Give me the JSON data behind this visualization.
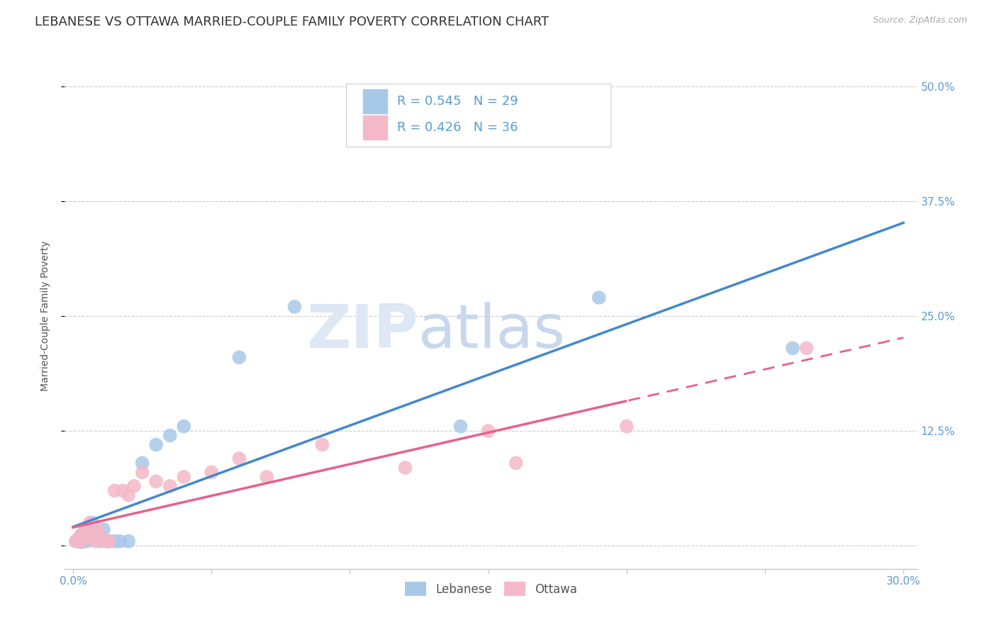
{
  "title": "LEBANESE VS OTTAWA MARRIED-COUPLE FAMILY POVERTY CORRELATION CHART",
  "source_text": "Source: ZipAtlas.com",
  "ylabel": "Married-Couple Family Poverty",
  "xlim": [
    -0.003,
    0.305
  ],
  "ylim": [
    -0.025,
    0.525
  ],
  "xticks": [
    0.0,
    0.05,
    0.1,
    0.15,
    0.2,
    0.25,
    0.3
  ],
  "xtick_labels": [
    "0.0%",
    "",
    "",
    "",
    "",
    "",
    "30.0%"
  ],
  "ytick_positions": [
    0.0,
    0.125,
    0.25,
    0.375,
    0.5
  ],
  "ytick_labels": [
    "",
    "12.5%",
    "25.0%",
    "37.5%",
    "50.0%"
  ],
  "watermark_zip": "ZIP",
  "watermark_atlas": "atlas",
  "legend_r1": "R = 0.545",
  "legend_n1": "N = 29",
  "legend_r2": "R = 0.426",
  "legend_n2": "N = 36",
  "blue_scatter_color": "#a8c8e8",
  "pink_scatter_color": "#f4b8c8",
  "blue_line_color": "#4488cc",
  "pink_line_color": "#e8608a",
  "blue_legend_color": "#a8c8e8",
  "pink_legend_color": "#f4b8c8",
  "tick_color": "#5b9bd5",
  "lebanese_x": [
    0.001,
    0.002,
    0.003,
    0.003,
    0.004,
    0.005,
    0.005,
    0.006,
    0.006,
    0.007,
    0.007,
    0.008,
    0.009,
    0.01,
    0.011,
    0.012,
    0.013,
    0.015,
    0.017,
    0.02,
    0.025,
    0.03,
    0.035,
    0.04,
    0.06,
    0.08,
    0.14,
    0.19,
    0.26
  ],
  "lebanese_y": [
    0.005,
    0.008,
    0.004,
    0.012,
    0.01,
    0.005,
    0.015,
    0.008,
    0.02,
    0.012,
    0.025,
    0.015,
    0.01,
    0.005,
    0.018,
    0.005,
    0.005,
    0.005,
    0.005,
    0.005,
    0.09,
    0.11,
    0.12,
    0.13,
    0.205,
    0.26,
    0.13,
    0.27,
    0.215
  ],
  "ottawa_x": [
    0.001,
    0.002,
    0.002,
    0.003,
    0.003,
    0.004,
    0.004,
    0.005,
    0.005,
    0.006,
    0.006,
    0.007,
    0.007,
    0.008,
    0.008,
    0.009,
    0.01,
    0.012,
    0.013,
    0.015,
    0.018,
    0.02,
    0.022,
    0.025,
    0.03,
    0.035,
    0.04,
    0.05,
    0.06,
    0.07,
    0.09,
    0.12,
    0.15,
    0.16,
    0.2,
    0.265
  ],
  "ottawa_y": [
    0.005,
    0.008,
    0.005,
    0.012,
    0.005,
    0.008,
    0.015,
    0.01,
    0.02,
    0.012,
    0.025,
    0.015,
    0.01,
    0.02,
    0.005,
    0.015,
    0.008,
    0.005,
    0.005,
    0.06,
    0.06,
    0.055,
    0.065,
    0.08,
    0.07,
    0.065,
    0.075,
    0.08,
    0.095,
    0.075,
    0.11,
    0.085,
    0.125,
    0.09,
    0.13,
    0.215
  ],
  "title_fontsize": 13,
  "label_fontsize": 10,
  "tick_fontsize": 11,
  "legend_fontsize": 13
}
